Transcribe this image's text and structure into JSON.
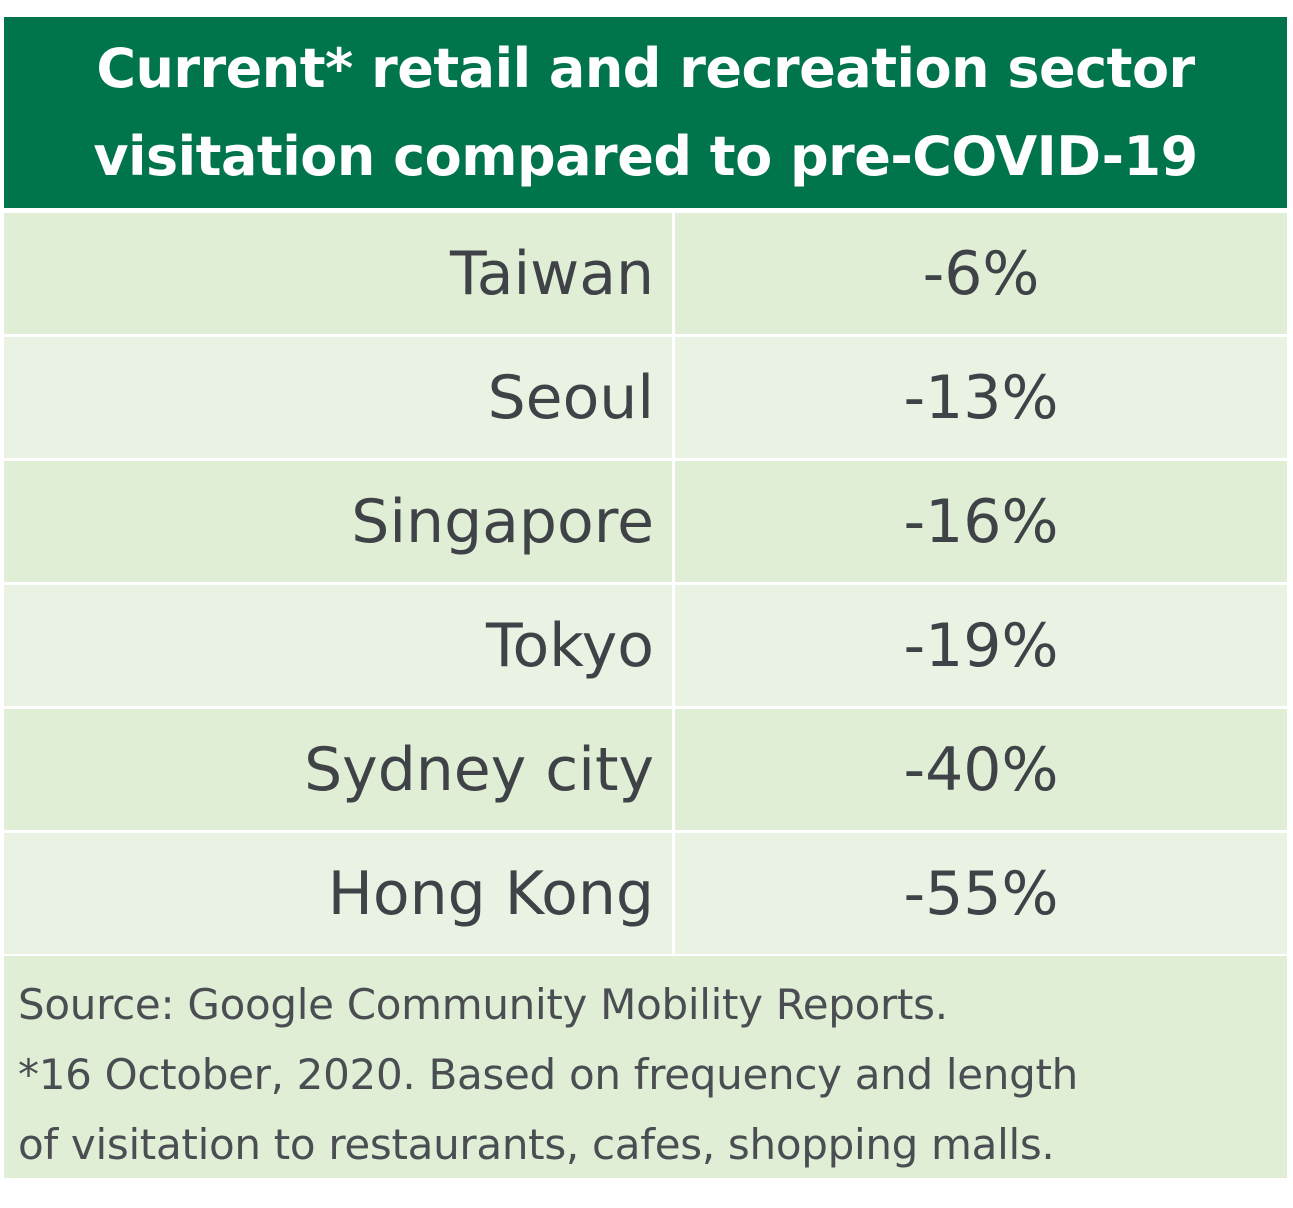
{
  "chart_data": {
    "type": "table",
    "title_lines": [
      "Current* retail and recreation sector",
      "visitation compared to pre-COVID-19"
    ],
    "rows": [
      {
        "city": "Taiwan",
        "value_label": "-6%",
        "value": -6
      },
      {
        "city": "Seoul",
        "value_label": "-13%",
        "value": -13
      },
      {
        "city": "Singapore",
        "value_label": "-16%",
        "value": -16
      },
      {
        "city": "Tokyo",
        "value_label": "-19%",
        "value": -19
      },
      {
        "city": "Sydney city",
        "value_label": "-40%",
        "value": -40
      },
      {
        "city": "Hong Kong",
        "value_label": "-55%",
        "value": -55
      }
    ],
    "footnote_lines": [
      "Source: Google Community Mobility Reports.",
      "*16 October, 2020. Based on frequency and length",
      "of visitation to restaurants, cafes, shopping malls."
    ]
  },
  "colors": {
    "header_background": "#00744a",
    "header_text": "#ffffff",
    "row_light": "#e1eed6",
    "row_lighter": "#eaf3e3",
    "body_text": "#3f4347"
  }
}
